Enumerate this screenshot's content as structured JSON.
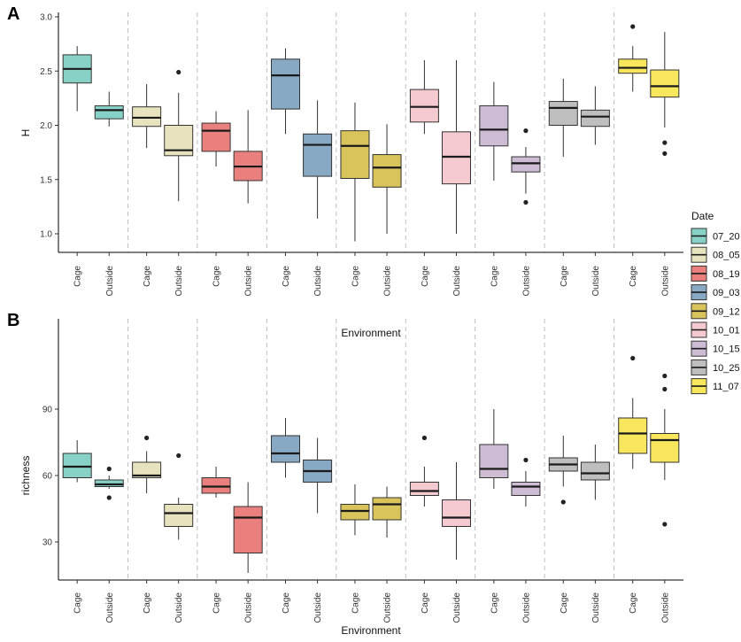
{
  "chart_data": [
    {
      "type": "boxplot",
      "panel_label": "A",
      "ylabel": "H",
      "xlabel": "Environment",
      "ylim": [
        0.85,
        3.0
      ],
      "yticks": [
        "1.0",
        "1.5",
        "2.0",
        "2.5",
        "3.0"
      ],
      "categories": [
        "Cage",
        "Outside"
      ],
      "groups": [
        {
          "date": "07_20",
          "boxes": [
            {
              "env": "Cage",
              "min": 2.13,
              "q1": 2.39,
              "median": 2.52,
              "q3": 2.65,
              "max": 2.73,
              "outliers": []
            },
            {
              "env": "Outside",
              "min": 1.99,
              "q1": 2.06,
              "median": 2.14,
              "q3": 2.18,
              "max": 2.31,
              "outliers": []
            }
          ]
        },
        {
          "date": "08_05",
          "boxes": [
            {
              "env": "Cage",
              "min": 1.79,
              "q1": 1.99,
              "median": 2.07,
              "q3": 2.17,
              "max": 2.38,
              "outliers": []
            },
            {
              "env": "Outside",
              "min": 1.3,
              "q1": 1.72,
              "median": 1.77,
              "q3": 2.0,
              "max": 2.3,
              "outliers": [
                2.49
              ]
            }
          ]
        },
        {
          "date": "08_19",
          "boxes": [
            {
              "env": "Cage",
              "min": 1.62,
              "q1": 1.76,
              "median": 1.95,
              "q3": 2.02,
              "max": 2.13,
              "outliers": []
            },
            {
              "env": "Outside",
              "min": 1.28,
              "q1": 1.49,
              "median": 1.62,
              "q3": 1.76,
              "max": 2.14,
              "outliers": []
            }
          ]
        },
        {
          "date": "09_03",
          "boxes": [
            {
              "env": "Cage",
              "min": 1.92,
              "q1": 2.15,
              "median": 2.46,
              "q3": 2.61,
              "max": 2.71,
              "outliers": []
            },
            {
              "env": "Outside",
              "min": 1.14,
              "q1": 1.53,
              "median": 1.82,
              "q3": 1.92,
              "max": 2.23,
              "outliers": []
            }
          ]
        },
        {
          "date": "09_12",
          "boxes": [
            {
              "env": "Cage",
              "min": 0.93,
              "q1": 1.51,
              "median": 1.81,
              "q3": 1.95,
              "max": 2.21,
              "outliers": []
            },
            {
              "env": "Outside",
              "min": 1.0,
              "q1": 1.43,
              "median": 1.61,
              "q3": 1.73,
              "max": 2.01,
              "outliers": []
            }
          ]
        },
        {
          "date": "10_01",
          "boxes": [
            {
              "env": "Cage",
              "min": 1.92,
              "q1": 2.03,
              "median": 2.17,
              "q3": 2.33,
              "max": 2.6,
              "outliers": []
            },
            {
              "env": "Outside",
              "min": 1.0,
              "q1": 1.46,
              "median": 1.71,
              "q3": 1.94,
              "max": 2.6,
              "outliers": []
            }
          ]
        },
        {
          "date": "10_15",
          "boxes": [
            {
              "env": "Cage",
              "min": 1.49,
              "q1": 1.81,
              "median": 1.96,
              "q3": 2.18,
              "max": 2.4,
              "outliers": []
            },
            {
              "env": "Outside",
              "min": 1.37,
              "q1": 1.57,
              "median": 1.65,
              "q3": 1.71,
              "max": 1.8,
              "outliers": [
                1.95,
                1.29
              ]
            }
          ]
        },
        {
          "date": "10_25",
          "boxes": [
            {
              "env": "Cage",
              "min": 1.71,
              "q1": 2.0,
              "median": 2.16,
              "q3": 2.22,
              "max": 2.43,
              "outliers": []
            },
            {
              "env": "Outside",
              "min": 1.82,
              "q1": 1.99,
              "median": 2.08,
              "q3": 2.14,
              "max": 2.36,
              "outliers": []
            }
          ]
        },
        {
          "date": "11_07",
          "boxes": [
            {
              "env": "Cage",
              "min": 2.31,
              "q1": 2.48,
              "median": 2.53,
              "q3": 2.61,
              "max": 2.73,
              "outliers": [
                2.91
              ]
            },
            {
              "env": "Outside",
              "min": 1.98,
              "q1": 2.26,
              "median": 2.36,
              "q3": 2.51,
              "max": 2.86,
              "outliers": [
                1.84,
                1.74
              ]
            }
          ]
        }
      ]
    },
    {
      "type": "boxplot",
      "panel_label": "B",
      "ylabel": "richness",
      "xlabel": "Environment",
      "ylim": [
        15,
        115
      ],
      "yticks": [
        "30",
        "60",
        "90"
      ],
      "categories": [
        "Cage",
        "Outside"
      ],
      "groups": [
        {
          "date": "07_20",
          "boxes": [
            {
              "env": "Cage",
              "min": 57,
              "q1": 59,
              "median": 64,
              "q3": 70,
              "max": 76,
              "outliers": []
            },
            {
              "env": "Outside",
              "min": 54,
              "q1": 55,
              "median": 56,
              "q3": 58,
              "max": 60,
              "outliers": [
                63,
                50
              ]
            }
          ]
        },
        {
          "date": "08_05",
          "boxes": [
            {
              "env": "Cage",
              "min": 52,
              "q1": 59,
              "median": 60,
              "q3": 66,
              "max": 71,
              "outliers": [
                77
              ]
            },
            {
              "env": "Outside",
              "min": 31,
              "q1": 37,
              "median": 43,
              "q3": 47,
              "max": 50,
              "outliers": [
                69
              ]
            }
          ]
        },
        {
          "date": "08_19",
          "boxes": [
            {
              "env": "Cage",
              "min": 50,
              "q1": 52,
              "median": 55,
              "q3": 59,
              "max": 64,
              "outliers": []
            },
            {
              "env": "Outside",
              "min": 16,
              "q1": 25,
              "median": 41,
              "q3": 46,
              "max": 57,
              "outliers": []
            }
          ]
        },
        {
          "date": "09_03",
          "boxes": [
            {
              "env": "Cage",
              "min": 59,
              "q1": 66,
              "median": 70,
              "q3": 78,
              "max": 86,
              "outliers": []
            },
            {
              "env": "Outside",
              "min": 43,
              "q1": 57,
              "median": 62,
              "q3": 67,
              "max": 77,
              "outliers": []
            }
          ]
        },
        {
          "date": "09_12",
          "boxes": [
            {
              "env": "Cage",
              "min": 33,
              "q1": 40,
              "median": 44,
              "q3": 47,
              "max": 56,
              "outliers": []
            },
            {
              "env": "Outside",
              "min": 32,
              "q1": 40,
              "median": 47,
              "q3": 50,
              "max": 55,
              "outliers": []
            }
          ]
        },
        {
          "date": "10_01",
          "boxes": [
            {
              "env": "Cage",
              "min": 46,
              "q1": 51,
              "median": 53,
              "q3": 57,
              "max": 64,
              "outliers": [
                77
              ]
            },
            {
              "env": "Outside",
              "min": 22,
              "q1": 37,
              "median": 41,
              "q3": 49,
              "max": 66,
              "outliers": []
            }
          ]
        },
        {
          "date": "10_15",
          "boxes": [
            {
              "env": "Cage",
              "min": 54,
              "q1": 59,
              "median": 63,
              "q3": 74,
              "max": 90,
              "outliers": []
            },
            {
              "env": "Outside",
              "min": 46,
              "q1": 51,
              "median": 55,
              "q3": 57,
              "max": 62,
              "outliers": [
                67
              ]
            }
          ]
        },
        {
          "date": "10_25",
          "boxes": [
            {
              "env": "Cage",
              "min": 55,
              "q1": 62,
              "median": 65,
              "q3": 68,
              "max": 78,
              "outliers": [
                48
              ]
            },
            {
              "env": "Outside",
              "min": 49,
              "q1": 58,
              "median": 61,
              "q3": 66,
              "max": 74,
              "outliers": []
            }
          ]
        },
        {
          "date": "11_07",
          "boxes": [
            {
              "env": "Cage",
              "min": 63,
              "q1": 70,
              "median": 79,
              "q3": 86,
              "max": 95,
              "outliers": [
                113
              ]
            },
            {
              "env": "Outside",
              "min": 58,
              "q1": 66,
              "median": 76,
              "q3": 79,
              "max": 90,
              "outliers": [
                105,
                99,
                38
              ]
            }
          ]
        }
      ]
    }
  ],
  "legend": {
    "title": "Date",
    "items": [
      {
        "label": "07_20",
        "color": "#87D1C6"
      },
      {
        "label": "08_05",
        "color": "#E7E3BF"
      },
      {
        "label": "08_19",
        "color": "#E9807E"
      },
      {
        "label": "09_03",
        "color": "#88A9C4"
      },
      {
        "label": "09_12",
        "color": "#D8C45A"
      },
      {
        "label": "10_01",
        "color": "#F4C9CF"
      },
      {
        "label": "10_15",
        "color": "#CDBCD3"
      },
      {
        "label": "10_25",
        "color": "#BEBEBE"
      },
      {
        "label": "11_07",
        "color": "#F8E65C"
      }
    ]
  }
}
